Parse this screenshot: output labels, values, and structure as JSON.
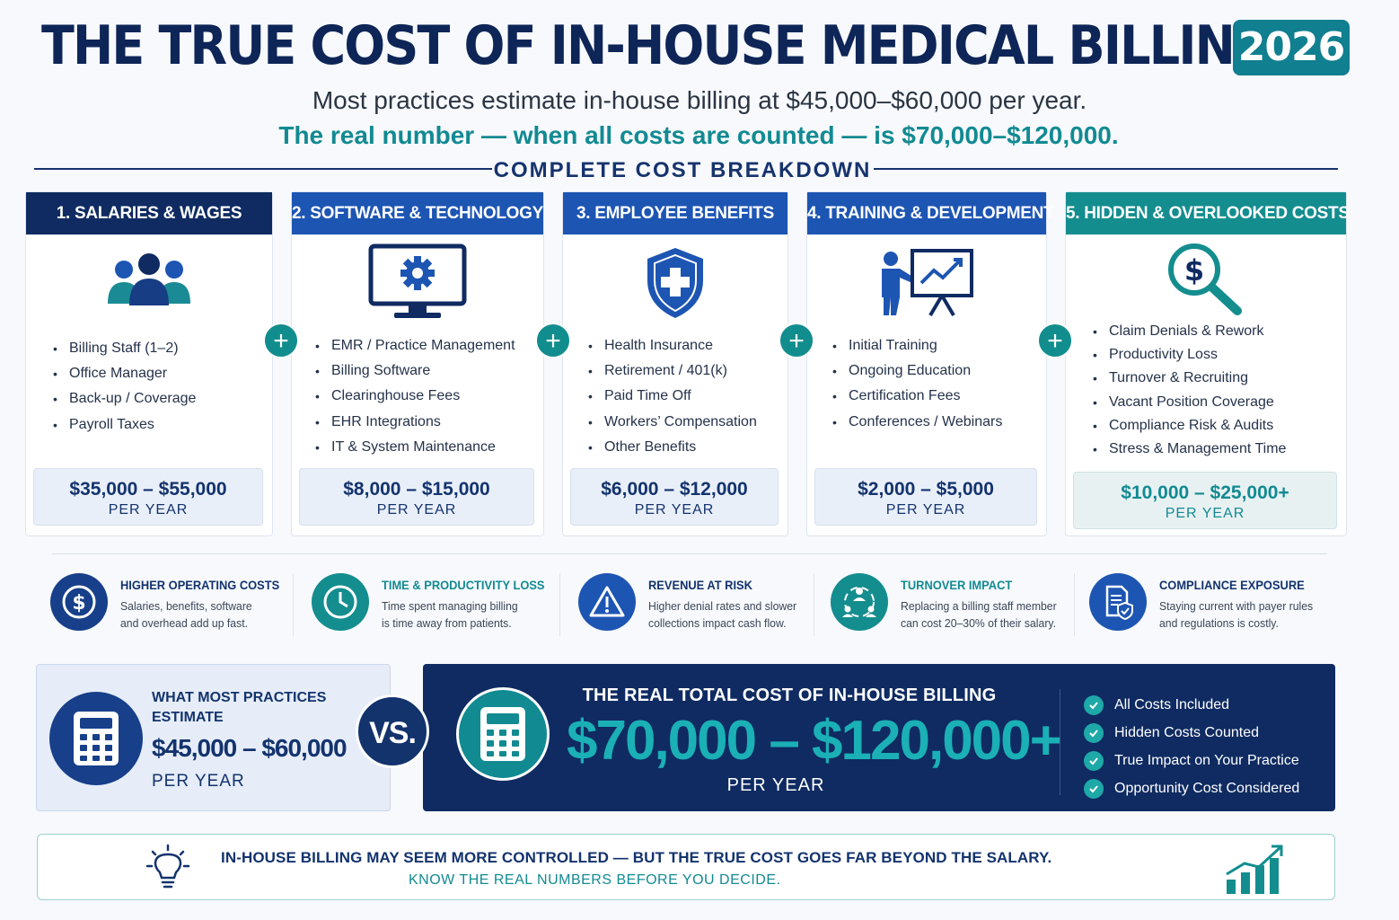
{
  "header": {
    "title": "THE TRUE COST OF IN-HOUSE MEDICAL BILLING",
    "year": "2026",
    "subtitle_line1": "Most practices estimate in-house billing at $45,000–$60,000 per year.",
    "subtitle_line2": "The real number — when all costs are counted — is $70,000–$120,000.",
    "section_title": "COMPLETE COST BREAKDOWN"
  },
  "colors": {
    "navy": "#0e2557",
    "blue": "#1d55b3",
    "teal": "#128a92",
    "light_panel": "#e9eff9"
  },
  "cards": [
    {
      "title": "1. SALARIES & WAGES",
      "icon": "people-icon",
      "items": [
        "Billing Staff (1–2)",
        "Office Manager",
        "Back-up / Coverage",
        "Payroll Taxes"
      ],
      "price": "$35,000 – $55,000",
      "unit": "PER YEAR"
    },
    {
      "title": "2. SOFTWARE & TECHNOLOGY",
      "icon": "monitor-gear-icon",
      "items": [
        "EMR / Practice Management",
        "Billing Software",
        "Clearinghouse Fees",
        "EHR Integrations",
        "IT & System Maintenance"
      ],
      "price": "$8,000 – $15,000",
      "unit": "PER YEAR"
    },
    {
      "title": "3. EMPLOYEE BENEFITS",
      "icon": "shield-plus-icon",
      "items": [
        "Health Insurance",
        "Retirement / 401(k)",
        "Paid Time Off",
        "Workers’ Compensation",
        "Other Benefits"
      ],
      "price": "$6,000 – $12,000",
      "unit": "PER YEAR"
    },
    {
      "title": "4. TRAINING & DEVELOPMENT",
      "icon": "presentation-icon",
      "items": [
        "Initial Training",
        "Ongoing Education",
        "Certification Fees",
        "Conferences / Webinars"
      ],
      "price": "$2,000 – $5,000",
      "unit": "PER YEAR"
    },
    {
      "title": "5. HIDDEN & OVERLOOKED COSTS",
      "icon": "magnifier-dollar-icon",
      "items": [
        "Claim Denials & Rework",
        "Productivity Loss",
        "Turnover & Recruiting",
        "Vacant Position Coverage",
        "Compliance Risk & Audits",
        "Stress & Management Time"
      ],
      "price": "$10,000 – $25,000+",
      "unit": "PER YEAR"
    }
  ],
  "impacts": [
    {
      "title": "HIGHER OPERATING COSTS",
      "desc1": "Salaries, benefits, software",
      "desc2": "and overhead add up fast.",
      "icon": "dollar-coin-icon"
    },
    {
      "title": "TIME & PRODUCTIVITY LOSS",
      "desc1": "Time spent managing billing",
      "desc2": "is time away from patients.",
      "icon": "clock-icon"
    },
    {
      "title": "REVENUE AT RISK",
      "desc1": "Higher denial rates and slower",
      "desc2": "collections impact cash flow.",
      "icon": "warning-icon"
    },
    {
      "title": "TURNOVER IMPACT",
      "desc1": "Replacing a billing staff member",
      "desc2": "can cost 20–30% of their salary.",
      "icon": "team-cycle-icon"
    },
    {
      "title": "COMPLIANCE EXPOSURE",
      "desc1": "Staying current with payer rules",
      "desc2": "and regulations is costly.",
      "icon": "document-shield-icon"
    }
  ],
  "comparison": {
    "estimate_label_line1": "WHAT MOST PRACTICES",
    "estimate_label_line2": "ESTIMATE",
    "estimate_value": "$45,000 – $60,000",
    "estimate_unit": "PER YEAR",
    "vs": "VS.",
    "real_label": "THE REAL TOTAL COST OF IN-HOUSE BILLING",
    "real_value": "$70,000 – $120,000+",
    "real_unit": "PER YEAR",
    "checks": [
      "All Costs Included",
      "Hidden Costs Counted",
      "True Impact on Your Practice",
      "Opportunity Cost Considered"
    ]
  },
  "footer": {
    "line1": "IN-HOUSE BILLING MAY SEEM MORE CONTROLLED — BUT THE TRUE COST GOES FAR BEYOND THE SALARY.",
    "line2": "KNOW THE REAL NUMBERS BEFORE YOU DECIDE.",
    "left_icon": "lightbulb-icon",
    "right_icon": "growth-chart-icon"
  }
}
